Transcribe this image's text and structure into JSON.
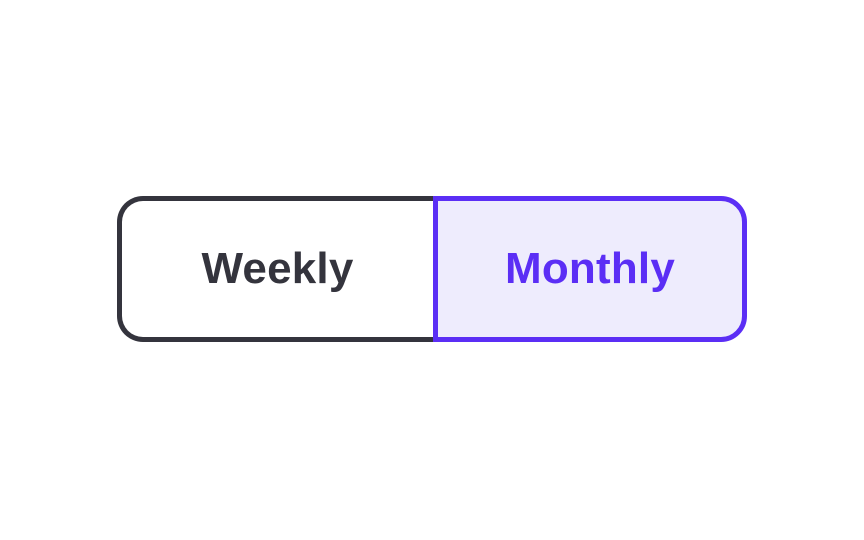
{
  "toggle": {
    "options": [
      {
        "label": "Weekly",
        "selected": false
      },
      {
        "label": "Monthly",
        "selected": true
      }
    ]
  },
  "colors": {
    "inactive_border": "#34343d",
    "inactive_text": "#34343d",
    "active_border": "#5b2ef5",
    "active_text": "#5b2ef5",
    "active_background": "#eeecfd",
    "page_background": "#ffffff"
  }
}
